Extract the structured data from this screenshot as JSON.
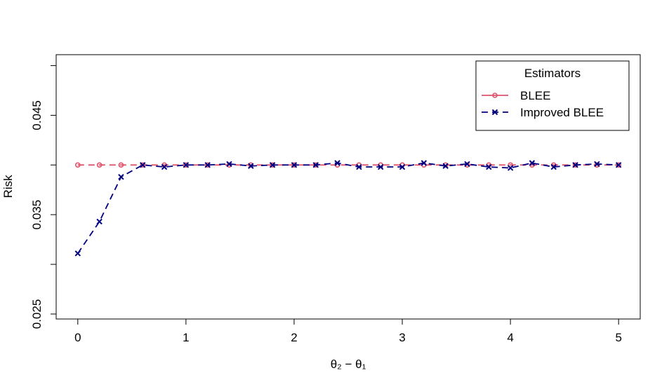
{
  "chart_data": {
    "type": "line",
    "title": "",
    "xlabel": "θ₂ − θ₁",
    "ylabel": "Risk",
    "xlim": [
      -0.2,
      5.2
    ],
    "ylim": [
      0.0245,
      0.0511
    ],
    "xticks": [
      "0",
      "1",
      "2",
      "3",
      "4",
      "5"
    ],
    "yticks": [
      "0.025",
      "0.035",
      "0.045"
    ],
    "y_minor_ticks": [
      0.025,
      0.03,
      0.035,
      0.04,
      0.045,
      0.05
    ],
    "grid": false,
    "legend": {
      "title": "Estimators",
      "position": "top-right"
    },
    "x": [
      0,
      0.2,
      0.4,
      0.6,
      0.8,
      1.0,
      1.2,
      1.4,
      1.6,
      1.8,
      2.0,
      2.2,
      2.4,
      2.6,
      2.8,
      3.0,
      3.2,
      3.4,
      3.6,
      3.8,
      4.0,
      4.2,
      4.4,
      4.6,
      4.8,
      5.0
    ],
    "series": [
      {
        "name": "BLEE",
        "color": "#DF536B",
        "marker": "circle",
        "line": "dashed",
        "values": [
          0.04,
          0.04,
          0.04,
          0.04,
          0.04,
          0.04,
          0.04,
          0.04,
          0.04,
          0.04,
          0.04,
          0.04,
          0.04,
          0.04,
          0.04,
          0.04,
          0.04,
          0.04,
          0.04,
          0.04,
          0.04,
          0.04,
          0.04,
          0.04,
          0.04,
          0.04
        ]
      },
      {
        "name": "Improved BLEE",
        "color": "#000080",
        "marker": "x",
        "line": "dashed",
        "values": [
          0.0311,
          0.0343,
          0.0388,
          0.04,
          0.0398,
          0.04,
          0.04,
          0.0401,
          0.0399,
          0.04,
          0.04,
          0.04,
          0.0402,
          0.0398,
          0.0398,
          0.0398,
          0.0402,
          0.0399,
          0.0401,
          0.0398,
          0.0397,
          0.0402,
          0.0398,
          0.04,
          0.0401,
          0.04
        ]
      }
    ]
  }
}
